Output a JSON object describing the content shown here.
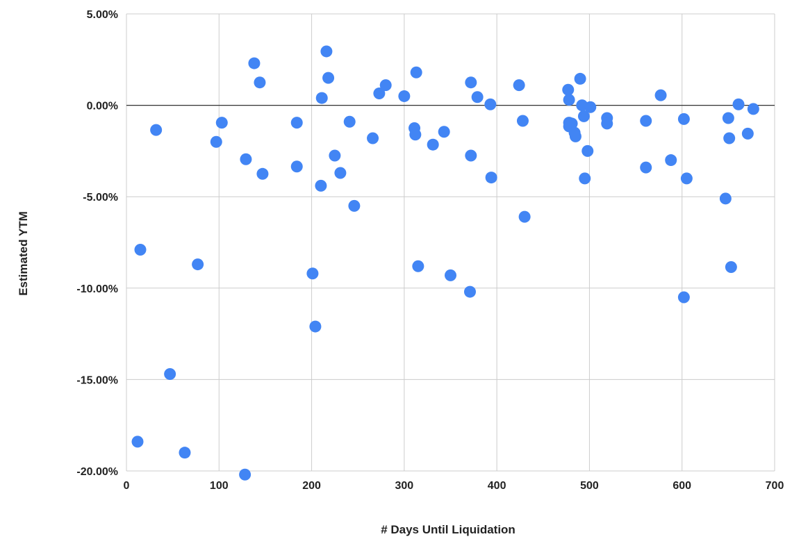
{
  "chart_data": {
    "type": "scatter",
    "title": "",
    "xlabel": "# Days Until Liquidation",
    "ylabel": "Estimated YTM",
    "xlim": [
      0,
      700
    ],
    "ylim": [
      -20,
      5
    ],
    "x_ticks": [
      "0",
      "100",
      "200",
      "300",
      "400",
      "500",
      "600",
      "700"
    ],
    "y_ticks": [
      "5.00%",
      "0.00%",
      "-5.00%",
      "-10.00%",
      "-15.00%",
      "-20.00%"
    ],
    "grid": true,
    "legend": "none",
    "marker_color": "#4285f4",
    "zero_line_color": "#333333",
    "points": [
      {
        "x": 12,
        "y": -18.4
      },
      {
        "x": 15,
        "y": -7.9
      },
      {
        "x": 32,
        "y": -1.35
      },
      {
        "x": 47,
        "y": -14.7
      },
      {
        "x": 63,
        "y": -19.0
      },
      {
        "x": 77,
        "y": -8.7
      },
      {
        "x": 97,
        "y": -2.0
      },
      {
        "x": 103,
        "y": -0.95
      },
      {
        "x": 128,
        "y": -20.2
      },
      {
        "x": 129,
        "y": -2.95
      },
      {
        "x": 138,
        "y": 2.3
      },
      {
        "x": 144,
        "y": 1.25
      },
      {
        "x": 147,
        "y": -3.75
      },
      {
        "x": 184,
        "y": -0.95
      },
      {
        "x": 184,
        "y": -3.35
      },
      {
        "x": 201,
        "y": -9.2
      },
      {
        "x": 204,
        "y": -12.1
      },
      {
        "x": 210,
        "y": -4.4
      },
      {
        "x": 211,
        "y": 0.4
      },
      {
        "x": 216,
        "y": 2.95
      },
      {
        "x": 218,
        "y": 1.5
      },
      {
        "x": 225,
        "y": -2.75
      },
      {
        "x": 231,
        "y": -3.7
      },
      {
        "x": 241,
        "y": -0.9
      },
      {
        "x": 246,
        "y": -5.5
      },
      {
        "x": 266,
        "y": -1.8
      },
      {
        "x": 273,
        "y": 0.65
      },
      {
        "x": 280,
        "y": 1.1
      },
      {
        "x": 300,
        "y": 0.5
      },
      {
        "x": 311,
        "y": -1.25
      },
      {
        "x": 312,
        "y": -1.6
      },
      {
        "x": 313,
        "y": 1.8
      },
      {
        "x": 315,
        "y": -8.8
      },
      {
        "x": 331,
        "y": -2.15
      },
      {
        "x": 343,
        "y": -1.45
      },
      {
        "x": 350,
        "y": -9.3
      },
      {
        "x": 371,
        "y": -10.2
      },
      {
        "x": 372,
        "y": -2.75
      },
      {
        "x": 372,
        "y": 1.25
      },
      {
        "x": 379,
        "y": 0.45
      },
      {
        "x": 393,
        "y": 0.05
      },
      {
        "x": 394,
        "y": -3.95
      },
      {
        "x": 424,
        "y": 1.1
      },
      {
        "x": 428,
        "y": -0.85
      },
      {
        "x": 430,
        "y": -6.1
      },
      {
        "x": 477,
        "y": 0.85
      },
      {
        "x": 478,
        "y": 0.3
      },
      {
        "x": 478,
        "y": -0.95
      },
      {
        "x": 478,
        "y": -1.15
      },
      {
        "x": 481,
        "y": -1.0
      },
      {
        "x": 484,
        "y": -1.5
      },
      {
        "x": 485,
        "y": -1.7
      },
      {
        "x": 490,
        "y": 1.45
      },
      {
        "x": 492,
        "y": 0.0
      },
      {
        "x": 494,
        "y": -0.6
      },
      {
        "x": 495,
        "y": -4.0
      },
      {
        "x": 498,
        "y": -2.5
      },
      {
        "x": 501,
        "y": -0.1
      },
      {
        "x": 519,
        "y": -0.7
      },
      {
        "x": 519,
        "y": -1.0
      },
      {
        "x": 561,
        "y": -0.85
      },
      {
        "x": 561,
        "y": -3.4
      },
      {
        "x": 577,
        "y": 0.55
      },
      {
        "x": 588,
        "y": -3.0
      },
      {
        "x": 602,
        "y": -0.75
      },
      {
        "x": 602,
        "y": -10.5
      },
      {
        "x": 605,
        "y": -4.0
      },
      {
        "x": 647,
        "y": -5.1
      },
      {
        "x": 650,
        "y": -0.7
      },
      {
        "x": 651,
        "y": -1.8
      },
      {
        "x": 653,
        "y": -8.85
      },
      {
        "x": 661,
        "y": 0.05
      },
      {
        "x": 671,
        "y": -1.55
      },
      {
        "x": 677,
        "y": -0.2
      }
    ]
  }
}
